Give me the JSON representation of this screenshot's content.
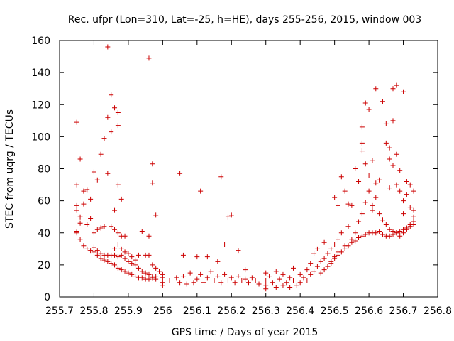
{
  "chart_data": {
    "type": "scatter",
    "title": "Rec. ufpr (Lon=310, Lat=-25, h=HE), days 255-256, 2015, window 003",
    "xlabel": "GPS time / Days of year 2015",
    "ylabel": "STEC from uqrg / TECUs",
    "xlim": [
      255.7,
      256.8
    ],
    "ylim": [
      0,
      160
    ],
    "xticks": [
      "255.7",
      "255.8",
      "255.9",
      "256",
      "256.1",
      "256.2",
      "256.3",
      "256.4",
      "256.5",
      "256.6",
      "256.7",
      "256.8"
    ],
    "yticks": [
      "0",
      "20",
      "40",
      "60",
      "80",
      "100",
      "120",
      "140",
      "160"
    ],
    "marker": "+",
    "color": "#cc0000",
    "grid": false,
    "legend": "none",
    "series": [
      {
        "name": "",
        "points": [
          [
            255.75,
            109
          ],
          [
            255.76,
            86
          ],
          [
            255.75,
            70
          ],
          [
            255.77,
            66
          ],
          [
            255.78,
            67
          ],
          [
            255.79,
            61
          ],
          [
            255.8,
            78
          ],
          [
            255.81,
            73
          ],
          [
            255.82,
            89
          ],
          [
            255.83,
            99
          ],
          [
            255.84,
            156
          ],
          [
            255.84,
            112
          ],
          [
            255.84,
            77
          ],
          [
            255.85,
            126
          ],
          [
            255.86,
            118
          ],
          [
            255.85,
            103
          ],
          [
            255.86,
            54
          ],
          [
            255.87,
            115
          ],
          [
            255.87,
            107
          ],
          [
            255.87,
            70
          ],
          [
            255.88,
            61
          ],
          [
            255.96,
            149
          ],
          [
            255.97,
            83
          ],
          [
            255.97,
            71
          ],
          [
            255.98,
            51
          ],
          [
            256.05,
            77
          ],
          [
            256.11,
            66
          ],
          [
            256.17,
            75
          ],
          [
            256.18,
            33
          ],
          [
            256.19,
            50
          ],
          [
            256.2,
            51
          ],
          [
            256.22,
            29
          ],
          [
            255.75,
            57
          ],
          [
            255.75,
            54
          ],
          [
            255.76,
            50
          ],
          [
            255.76,
            46
          ],
          [
            255.75,
            41
          ],
          [
            255.77,
            58
          ],
          [
            255.78,
            45
          ],
          [
            255.79,
            49
          ],
          [
            255.8,
            40
          ],
          [
            255.81,
            42
          ],
          [
            255.82,
            43
          ],
          [
            255.83,
            44
          ],
          [
            255.85,
            44
          ],
          [
            255.86,
            42
          ],
          [
            255.87,
            40
          ],
          [
            255.88,
            38
          ],
          [
            255.89,
            38
          ],
          [
            255.75,
            40
          ],
          [
            255.76,
            36
          ],
          [
            255.77,
            32
          ],
          [
            255.78,
            30
          ],
          [
            255.79,
            29
          ],
          [
            255.8,
            28
          ],
          [
            255.81,
            26
          ],
          [
            255.82,
            24
          ],
          [
            255.83,
            23
          ],
          [
            255.84,
            22
          ],
          [
            255.85,
            21
          ],
          [
            255.86,
            20
          ],
          [
            255.87,
            18
          ],
          [
            255.88,
            17
          ],
          [
            255.89,
            16
          ],
          [
            255.9,
            15
          ],
          [
            255.91,
            14
          ],
          [
            255.92,
            13
          ],
          [
            255.93,
            12
          ],
          [
            255.94,
            12
          ],
          [
            255.95,
            11
          ],
          [
            255.96,
            11
          ],
          [
            255.97,
            12
          ],
          [
            255.98,
            11
          ],
          [
            255.8,
            31
          ],
          [
            255.81,
            29
          ],
          [
            255.82,
            27
          ],
          [
            255.83,
            26
          ],
          [
            255.84,
            26
          ],
          [
            255.85,
            26
          ],
          [
            255.86,
            26
          ],
          [
            255.87,
            25
          ],
          [
            255.88,
            26
          ],
          [
            255.89,
            24
          ],
          [
            255.9,
            22
          ],
          [
            255.91,
            21
          ],
          [
            255.92,
            20
          ],
          [
            255.93,
            18
          ],
          [
            255.94,
            16
          ],
          [
            255.95,
            15
          ],
          [
            255.96,
            14
          ],
          [
            255.97,
            13
          ],
          [
            255.98,
            13
          ],
          [
            255.86,
            30
          ],
          [
            255.87,
            33
          ],
          [
            255.88,
            30
          ],
          [
            255.89,
            28
          ],
          [
            255.9,
            27
          ],
          [
            255.91,
            25
          ],
          [
            255.92,
            23
          ],
          [
            255.93,
            26
          ],
          [
            255.94,
            41
          ],
          [
            255.95,
            26
          ],
          [
            255.96,
            38
          ],
          [
            255.96,
            26
          ],
          [
            255.97,
            20
          ],
          [
            255.98,
            18
          ],
          [
            255.99,
            16
          ],
          [
            256.0,
            14
          ],
          [
            256.0,
            12
          ],
          [
            256.0,
            9
          ],
          [
            256.0,
            7
          ],
          [
            256.02,
            10
          ],
          [
            256.04,
            12
          ],
          [
            256.05,
            9
          ],
          [
            256.06,
            26
          ],
          [
            256.06,
            13
          ],
          [
            256.07,
            8
          ],
          [
            256.08,
            15
          ],
          [
            256.09,
            9
          ],
          [
            256.1,
            25
          ],
          [
            256.1,
            11
          ],
          [
            256.11,
            14
          ],
          [
            256.12,
            9
          ],
          [
            256.13,
            25
          ],
          [
            256.13,
            12
          ],
          [
            256.14,
            16
          ],
          [
            256.15,
            10
          ],
          [
            256.16,
            22
          ],
          [
            256.16,
            13
          ],
          [
            256.17,
            9
          ],
          [
            256.18,
            14
          ],
          [
            256.19,
            10
          ],
          [
            256.2,
            12
          ],
          [
            256.21,
            9
          ],
          [
            256.22,
            13
          ],
          [
            256.23,
            10
          ],
          [
            256.24,
            17
          ],
          [
            256.24,
            11
          ],
          [
            256.25,
            9
          ],
          [
            256.26,
            12
          ],
          [
            256.27,
            10
          ],
          [
            256.28,
            8
          ],
          [
            256.3,
            15
          ],
          [
            256.3,
            10
          ],
          [
            256.3,
            7
          ],
          [
            256.3,
            5
          ],
          [
            256.31,
            13
          ],
          [
            256.32,
            9
          ],
          [
            256.33,
            16
          ],
          [
            256.33,
            6
          ],
          [
            256.34,
            11
          ],
          [
            256.35,
            14
          ],
          [
            256.35,
            7
          ],
          [
            256.36,
            9
          ],
          [
            256.37,
            12
          ],
          [
            256.37,
            6
          ],
          [
            256.38,
            18
          ],
          [
            256.38,
            10
          ],
          [
            256.39,
            7
          ],
          [
            256.4,
            14
          ],
          [
            256.4,
            9
          ],
          [
            256.41,
            12
          ],
          [
            256.42,
            17
          ],
          [
            256.42,
            10
          ],
          [
            256.43,
            21
          ],
          [
            256.43,
            14
          ],
          [
            256.44,
            27
          ],
          [
            256.44,
            16
          ],
          [
            256.45,
            30
          ],
          [
            256.45,
            19
          ],
          [
            256.46,
            22
          ],
          [
            256.47,
            34
          ],
          [
            256.47,
            24
          ],
          [
            256.48,
            27
          ],
          [
            256.49,
            30
          ],
          [
            256.49,
            22
          ],
          [
            256.5,
            33
          ],
          [
            256.5,
            25
          ],
          [
            256.51,
            36
          ],
          [
            256.51,
            28
          ],
          [
            256.52,
            40
          ],
          [
            256.53,
            32
          ],
          [
            256.54,
            44
          ],
          [
            256.55,
            36
          ],
          [
            256.56,
            40
          ],
          [
            256.57,
            47
          ],
          [
            256.58,
            52
          ],
          [
            256.59,
            59
          ],
          [
            256.6,
            66
          ],
          [
            256.61,
            57
          ],
          [
            256.62,
            62
          ],
          [
            256.63,
            52
          ],
          [
            256.64,
            48
          ],
          [
            256.65,
            45
          ],
          [
            256.66,
            42
          ],
          [
            256.67,
            41
          ],
          [
            256.68,
            40
          ],
          [
            256.69,
            38
          ],
          [
            256.7,
            40
          ],
          [
            256.71,
            42
          ],
          [
            256.72,
            45
          ],
          [
            256.73,
            47
          ],
          [
            256.46,
            15
          ],
          [
            256.47,
            17
          ],
          [
            256.48,
            19
          ],
          [
            256.49,
            21
          ],
          [
            256.5,
            24
          ],
          [
            256.51,
            26
          ],
          [
            256.52,
            28
          ],
          [
            256.53,
            30
          ],
          [
            256.54,
            32
          ],
          [
            256.55,
            34
          ],
          [
            256.56,
            35
          ],
          [
            256.57,
            37
          ],
          [
            256.58,
            38
          ],
          [
            256.59,
            39
          ],
          [
            256.6,
            40
          ],
          [
            256.61,
            40
          ],
          [
            256.62,
            40
          ],
          [
            256.63,
            41
          ],
          [
            256.64,
            39
          ],
          [
            256.65,
            38
          ],
          [
            256.66,
            38
          ],
          [
            256.67,
            39
          ],
          [
            256.68,
            40
          ],
          [
            256.69,
            41
          ],
          [
            256.7,
            42
          ],
          [
            256.71,
            43
          ],
          [
            256.72,
            44
          ],
          [
            256.73,
            45
          ],
          [
            256.5,
            62
          ],
          [
            256.51,
            57
          ],
          [
            256.52,
            75
          ],
          [
            256.53,
            66
          ],
          [
            256.54,
            58
          ],
          [
            256.55,
            57
          ],
          [
            256.56,
            80
          ],
          [
            256.57,
            72
          ],
          [
            256.58,
            106
          ],
          [
            256.58,
            96
          ],
          [
            256.58,
            91
          ],
          [
            256.59,
            121
          ],
          [
            256.59,
            83
          ],
          [
            256.6,
            117
          ],
          [
            256.6,
            76
          ],
          [
            256.61,
            85
          ],
          [
            256.61,
            54
          ],
          [
            256.62,
            130
          ],
          [
            256.62,
            71
          ],
          [
            256.63,
            73
          ],
          [
            256.64,
            122
          ],
          [
            256.65,
            108
          ],
          [
            256.65,
            96
          ],
          [
            256.66,
            93
          ],
          [
            256.66,
            86
          ],
          [
            256.66,
            68
          ],
          [
            256.67,
            130
          ],
          [
            256.67,
            110
          ],
          [
            256.67,
            82
          ],
          [
            256.68,
            132
          ],
          [
            256.68,
            89
          ],
          [
            256.68,
            70
          ],
          [
            256.69,
            79
          ],
          [
            256.69,
            66
          ],
          [
            256.7,
            128
          ],
          [
            256.7,
            60
          ],
          [
            256.7,
            52
          ],
          [
            256.71,
            72
          ],
          [
            256.71,
            64
          ],
          [
            256.72,
            70
          ],
          [
            256.72,
            56
          ],
          [
            256.73,
            66
          ],
          [
            256.73,
            54
          ],
          [
            256.73,
            50
          ]
        ]
      }
    ]
  }
}
